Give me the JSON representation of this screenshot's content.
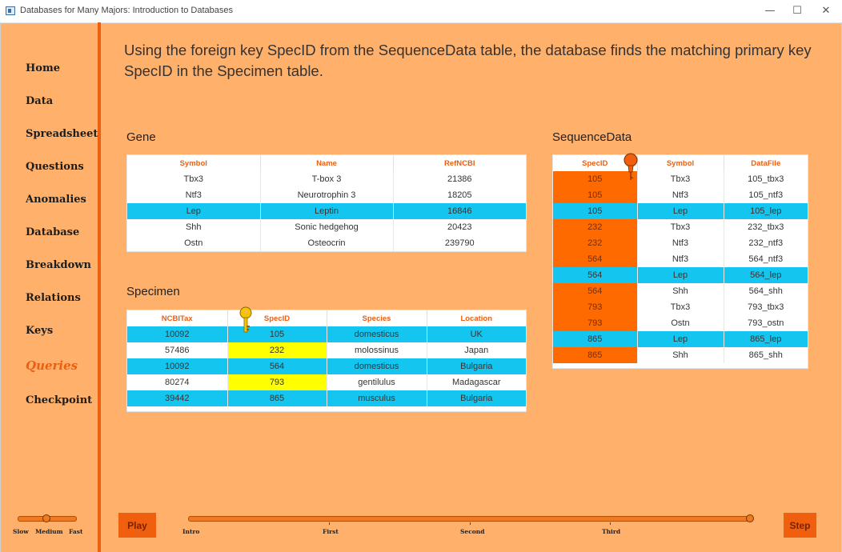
{
  "window": {
    "title": "Databases for Many Majors: Introduction to Databases",
    "minimize_glyph": "—",
    "maximize_glyph": "☐",
    "close_glyph": "✕"
  },
  "sidebar": {
    "items": [
      {
        "label": "Home",
        "active": false
      },
      {
        "label": "Data",
        "active": false
      },
      {
        "label": "Spreadsheet",
        "active": false
      },
      {
        "label": "Questions",
        "active": false
      },
      {
        "label": "Anomalies",
        "active": false
      },
      {
        "label": "Database",
        "active": false
      },
      {
        "label": "Breakdown",
        "active": false
      },
      {
        "label": "Relations",
        "active": false
      },
      {
        "label": "Keys",
        "active": false
      },
      {
        "label": "Queries",
        "active": true
      },
      {
        "label": "Checkpoint",
        "active": false
      }
    ]
  },
  "heading": "Using the foreign key SpecID from the SequenceData table, the database finds the matching primary key SpecID in the Specimen table.",
  "gene": {
    "title": "Gene",
    "columns": [
      "Symbol",
      "Name",
      "RefNCBI"
    ],
    "rows": [
      [
        "Tbx3",
        "T-box 3",
        "21386"
      ],
      [
        "Ntf3",
        "Neurotrophin 3",
        "18205"
      ],
      [
        "Lep",
        "Leptin",
        "16846"
      ],
      [
        "Shh",
        "Sonic hedgehog",
        "20423"
      ],
      [
        "Ostn",
        "Osteocrin",
        "239790"
      ]
    ],
    "highlighted_rows": [
      2
    ]
  },
  "specimen": {
    "title": "Specimen",
    "columns": [
      "NCBITax",
      "SpecID",
      "Species",
      "Location"
    ],
    "rows": [
      [
        "10092",
        "105",
        "domesticus",
        "UK"
      ],
      [
        "57486",
        "232",
        "molossinus",
        "Japan"
      ],
      [
        "10092",
        "564",
        "domesticus",
        "Bulgaria"
      ],
      [
        "80274",
        "793",
        "gentilulus",
        "Madagascar"
      ],
      [
        "39442",
        "865",
        "musculus",
        "Bulgaria"
      ]
    ],
    "highlighted_rows": [
      0,
      2,
      4
    ],
    "yellow_specid_rows": [
      1,
      3
    ]
  },
  "sequence_data": {
    "title": "SequenceData",
    "columns": [
      "SpecID",
      "Symbol",
      "DataFile"
    ],
    "rows": [
      [
        "105",
        "Tbx3",
        "105_tbx3"
      ],
      [
        "105",
        "Ntf3",
        "105_ntf3"
      ],
      [
        "105",
        "Lep",
        "105_lep"
      ],
      [
        "232",
        "Tbx3",
        "232_tbx3"
      ],
      [
        "232",
        "Ntf3",
        "232_ntf3"
      ],
      [
        "564",
        "Ntf3",
        "564_ntf3"
      ],
      [
        "564",
        "Lep",
        "564_lep"
      ],
      [
        "564",
        "Shh",
        "564_shh"
      ],
      [
        "793",
        "Tbx3",
        "793_tbx3"
      ],
      [
        "793",
        "Ostn",
        "793_ostn"
      ],
      [
        "865",
        "Lep",
        "865_lep"
      ],
      [
        "865",
        "Shh",
        "865_shh"
      ]
    ],
    "highlighted_rows": [
      2,
      6,
      10
    ]
  },
  "speed": {
    "labels": [
      "Slow",
      "Medium",
      "Fast"
    ],
    "selected": "Medium"
  },
  "controls": {
    "play_label": "Play",
    "step_label": "Step",
    "timeline_labels": [
      "Intro",
      "First",
      "Second",
      "Third"
    ],
    "position": "end"
  },
  "colors": {
    "accent": "#f05f0e",
    "background": "#ffb06b",
    "row_highlight": "#14c6ef",
    "match_yellow": "#ffff00",
    "foreign_key": "#ff6a00"
  }
}
